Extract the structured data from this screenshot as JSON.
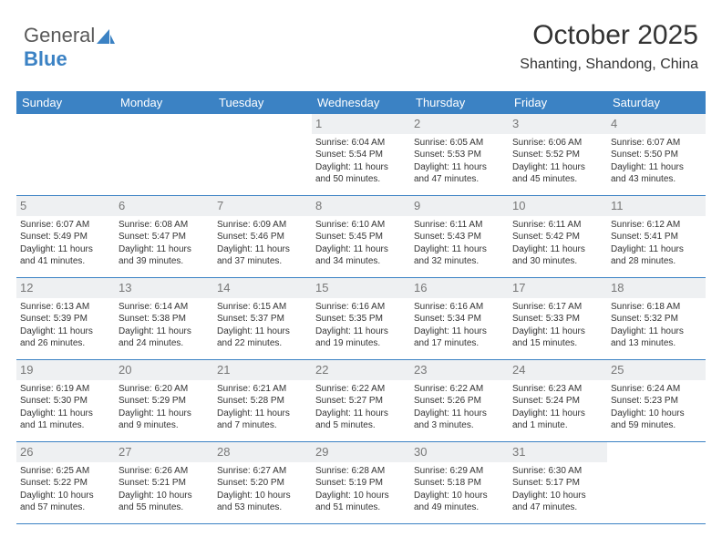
{
  "logo": {
    "text1": "General",
    "text2": "Blue"
  },
  "title": "October 2025",
  "subtitle": "Shanting, Shandong, China",
  "colors": {
    "accent": "#3b82c4",
    "daynum_bg": "#eef0f2",
    "daynum_fg": "#777777",
    "text": "#333333",
    "bg": "#ffffff"
  },
  "weekdays": [
    "Sunday",
    "Monday",
    "Tuesday",
    "Wednesday",
    "Thursday",
    "Friday",
    "Saturday"
  ],
  "weeks": [
    [
      null,
      null,
      null,
      {
        "n": "1",
        "sr": "Sunrise: 6:04 AM",
        "ss": "Sunset: 5:54 PM",
        "d1": "Daylight: 11 hours",
        "d2": "and 50 minutes."
      },
      {
        "n": "2",
        "sr": "Sunrise: 6:05 AM",
        "ss": "Sunset: 5:53 PM",
        "d1": "Daylight: 11 hours",
        "d2": "and 47 minutes."
      },
      {
        "n": "3",
        "sr": "Sunrise: 6:06 AM",
        "ss": "Sunset: 5:52 PM",
        "d1": "Daylight: 11 hours",
        "d2": "and 45 minutes."
      },
      {
        "n": "4",
        "sr": "Sunrise: 6:07 AM",
        "ss": "Sunset: 5:50 PM",
        "d1": "Daylight: 11 hours",
        "d2": "and 43 minutes."
      }
    ],
    [
      {
        "n": "5",
        "sr": "Sunrise: 6:07 AM",
        "ss": "Sunset: 5:49 PM",
        "d1": "Daylight: 11 hours",
        "d2": "and 41 minutes."
      },
      {
        "n": "6",
        "sr": "Sunrise: 6:08 AM",
        "ss": "Sunset: 5:47 PM",
        "d1": "Daylight: 11 hours",
        "d2": "and 39 minutes."
      },
      {
        "n": "7",
        "sr": "Sunrise: 6:09 AM",
        "ss": "Sunset: 5:46 PM",
        "d1": "Daylight: 11 hours",
        "d2": "and 37 minutes."
      },
      {
        "n": "8",
        "sr": "Sunrise: 6:10 AM",
        "ss": "Sunset: 5:45 PM",
        "d1": "Daylight: 11 hours",
        "d2": "and 34 minutes."
      },
      {
        "n": "9",
        "sr": "Sunrise: 6:11 AM",
        "ss": "Sunset: 5:43 PM",
        "d1": "Daylight: 11 hours",
        "d2": "and 32 minutes."
      },
      {
        "n": "10",
        "sr": "Sunrise: 6:11 AM",
        "ss": "Sunset: 5:42 PM",
        "d1": "Daylight: 11 hours",
        "d2": "and 30 minutes."
      },
      {
        "n": "11",
        "sr": "Sunrise: 6:12 AM",
        "ss": "Sunset: 5:41 PM",
        "d1": "Daylight: 11 hours",
        "d2": "and 28 minutes."
      }
    ],
    [
      {
        "n": "12",
        "sr": "Sunrise: 6:13 AM",
        "ss": "Sunset: 5:39 PM",
        "d1": "Daylight: 11 hours",
        "d2": "and 26 minutes."
      },
      {
        "n": "13",
        "sr": "Sunrise: 6:14 AM",
        "ss": "Sunset: 5:38 PM",
        "d1": "Daylight: 11 hours",
        "d2": "and 24 minutes."
      },
      {
        "n": "14",
        "sr": "Sunrise: 6:15 AM",
        "ss": "Sunset: 5:37 PM",
        "d1": "Daylight: 11 hours",
        "d2": "and 22 minutes."
      },
      {
        "n": "15",
        "sr": "Sunrise: 6:16 AM",
        "ss": "Sunset: 5:35 PM",
        "d1": "Daylight: 11 hours",
        "d2": "and 19 minutes."
      },
      {
        "n": "16",
        "sr": "Sunrise: 6:16 AM",
        "ss": "Sunset: 5:34 PM",
        "d1": "Daylight: 11 hours",
        "d2": "and 17 minutes."
      },
      {
        "n": "17",
        "sr": "Sunrise: 6:17 AM",
        "ss": "Sunset: 5:33 PM",
        "d1": "Daylight: 11 hours",
        "d2": "and 15 minutes."
      },
      {
        "n": "18",
        "sr": "Sunrise: 6:18 AM",
        "ss": "Sunset: 5:32 PM",
        "d1": "Daylight: 11 hours",
        "d2": "and 13 minutes."
      }
    ],
    [
      {
        "n": "19",
        "sr": "Sunrise: 6:19 AM",
        "ss": "Sunset: 5:30 PM",
        "d1": "Daylight: 11 hours",
        "d2": "and 11 minutes."
      },
      {
        "n": "20",
        "sr": "Sunrise: 6:20 AM",
        "ss": "Sunset: 5:29 PM",
        "d1": "Daylight: 11 hours",
        "d2": "and 9 minutes."
      },
      {
        "n": "21",
        "sr": "Sunrise: 6:21 AM",
        "ss": "Sunset: 5:28 PM",
        "d1": "Daylight: 11 hours",
        "d2": "and 7 minutes."
      },
      {
        "n": "22",
        "sr": "Sunrise: 6:22 AM",
        "ss": "Sunset: 5:27 PM",
        "d1": "Daylight: 11 hours",
        "d2": "and 5 minutes."
      },
      {
        "n": "23",
        "sr": "Sunrise: 6:22 AM",
        "ss": "Sunset: 5:26 PM",
        "d1": "Daylight: 11 hours",
        "d2": "and 3 minutes."
      },
      {
        "n": "24",
        "sr": "Sunrise: 6:23 AM",
        "ss": "Sunset: 5:24 PM",
        "d1": "Daylight: 11 hours",
        "d2": "and 1 minute."
      },
      {
        "n": "25",
        "sr": "Sunrise: 6:24 AM",
        "ss": "Sunset: 5:23 PM",
        "d1": "Daylight: 10 hours",
        "d2": "and 59 minutes."
      }
    ],
    [
      {
        "n": "26",
        "sr": "Sunrise: 6:25 AM",
        "ss": "Sunset: 5:22 PM",
        "d1": "Daylight: 10 hours",
        "d2": "and 57 minutes."
      },
      {
        "n": "27",
        "sr": "Sunrise: 6:26 AM",
        "ss": "Sunset: 5:21 PM",
        "d1": "Daylight: 10 hours",
        "d2": "and 55 minutes."
      },
      {
        "n": "28",
        "sr": "Sunrise: 6:27 AM",
        "ss": "Sunset: 5:20 PM",
        "d1": "Daylight: 10 hours",
        "d2": "and 53 minutes."
      },
      {
        "n": "29",
        "sr": "Sunrise: 6:28 AM",
        "ss": "Sunset: 5:19 PM",
        "d1": "Daylight: 10 hours",
        "d2": "and 51 minutes."
      },
      {
        "n": "30",
        "sr": "Sunrise: 6:29 AM",
        "ss": "Sunset: 5:18 PM",
        "d1": "Daylight: 10 hours",
        "d2": "and 49 minutes."
      },
      {
        "n": "31",
        "sr": "Sunrise: 6:30 AM",
        "ss": "Sunset: 5:17 PM",
        "d1": "Daylight: 10 hours",
        "d2": "and 47 minutes."
      },
      null
    ]
  ]
}
